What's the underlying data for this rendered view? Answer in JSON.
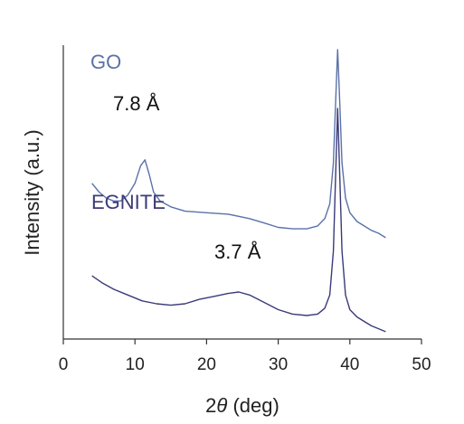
{
  "chart_data": {
    "type": "line",
    "xlabel_prefix": "2",
    "xlabel_theta": "θ",
    "xlabel_suffix": " (deg)",
    "ylabel": "Intensity (a.u.)",
    "xlim": [
      0,
      50
    ],
    "xticks": [
      0,
      10,
      20,
      30,
      40,
      50
    ],
    "yticks_visible": false,
    "grid": false,
    "series": [
      {
        "name": "GO",
        "color": "#5a72a8",
        "label_color": "#5a72a8",
        "points": [
          [
            4.0,
            0.53
          ],
          [
            5.0,
            0.5
          ],
          [
            6.0,
            0.48
          ],
          [
            7.0,
            0.47
          ],
          [
            8.0,
            0.47
          ],
          [
            9.0,
            0.49
          ],
          [
            10.0,
            0.53
          ],
          [
            10.8,
            0.59
          ],
          [
            11.4,
            0.61
          ],
          [
            12.0,
            0.56
          ],
          [
            12.6,
            0.5
          ],
          [
            13.5,
            0.47
          ],
          [
            15.0,
            0.45
          ],
          [
            17.0,
            0.435
          ],
          [
            20.0,
            0.43
          ],
          [
            23.0,
            0.425
          ],
          [
            26.0,
            0.41
          ],
          [
            28.0,
            0.395
          ],
          [
            30.0,
            0.38
          ],
          [
            32.0,
            0.375
          ],
          [
            34.0,
            0.375
          ],
          [
            35.5,
            0.385
          ],
          [
            36.5,
            0.41
          ],
          [
            37.2,
            0.46
          ],
          [
            37.7,
            0.6
          ],
          [
            38.0,
            0.8
          ],
          [
            38.3,
            0.985
          ],
          [
            38.6,
            0.8
          ],
          [
            38.9,
            0.6
          ],
          [
            39.4,
            0.48
          ],
          [
            40.0,
            0.43
          ],
          [
            41.0,
            0.4
          ],
          [
            42.0,
            0.385
          ],
          [
            43.0,
            0.37
          ],
          [
            44.0,
            0.36
          ],
          [
            45.0,
            0.345
          ]
        ]
      },
      {
        "name": "EGNITE",
        "color": "#3a3a7a",
        "label_color": "#3d3a78",
        "points": [
          [
            4.0,
            0.215
          ],
          [
            5.5,
            0.19
          ],
          [
            7.0,
            0.17
          ],
          [
            9.0,
            0.15
          ],
          [
            11.0,
            0.13
          ],
          [
            13.0,
            0.12
          ],
          [
            15.0,
            0.115
          ],
          [
            17.0,
            0.12
          ],
          [
            19.0,
            0.135
          ],
          [
            21.0,
            0.145
          ],
          [
            23.0,
            0.155
          ],
          [
            24.5,
            0.16
          ],
          [
            26.0,
            0.15
          ],
          [
            28.0,
            0.125
          ],
          [
            30.0,
            0.1
          ],
          [
            32.0,
            0.085
          ],
          [
            34.0,
            0.08
          ],
          [
            35.5,
            0.085
          ],
          [
            36.5,
            0.105
          ],
          [
            37.2,
            0.15
          ],
          [
            37.7,
            0.3
          ],
          [
            38.0,
            0.55
          ],
          [
            38.3,
            0.785
          ],
          [
            38.6,
            0.55
          ],
          [
            38.9,
            0.3
          ],
          [
            39.4,
            0.15
          ],
          [
            40.0,
            0.1
          ],
          [
            41.0,
            0.075
          ],
          [
            42.0,
            0.06
          ],
          [
            43.0,
            0.045
          ],
          [
            44.0,
            0.035
          ],
          [
            45.0,
            0.025
          ]
        ]
      }
    ],
    "annotations": [
      {
        "text": "7.8 Å",
        "x": 11.4,
        "y": 0.61
      },
      {
        "text": "3.7 Å",
        "x": 24.5,
        "y": 0.16
      }
    ]
  }
}
